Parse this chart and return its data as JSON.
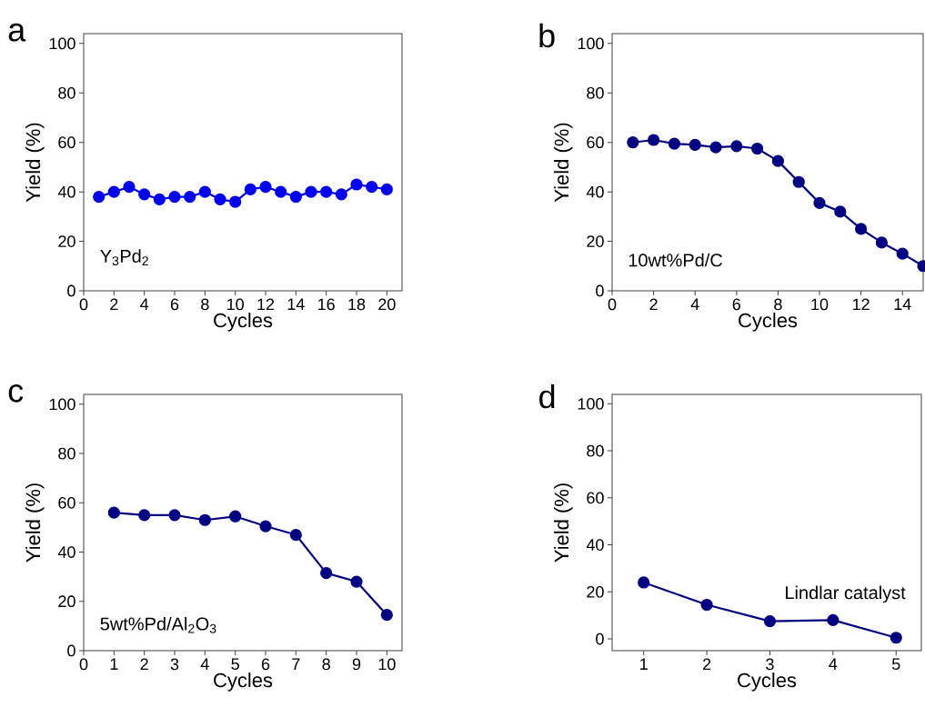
{
  "chart_data": [
    {
      "type": "line",
      "xlabel": "Cycles",
      "ylabel": "Yield (%)",
      "annotations": [
        "a",
        "Y$_{3}$Pd$_{2}$"
      ],
      "marker": "circle",
      "line_style": "solid",
      "xlim": [
        0,
        21
      ],
      "ylim": [
        0,
        104
      ],
      "xticks": [
        0,
        2,
        4,
        6,
        8,
        10,
        12,
        14,
        16,
        18,
        20
      ],
      "yticks": [
        0,
        20,
        40,
        60,
        80,
        100
      ],
      "x": [
        1,
        2,
        3,
        4,
        5,
        6,
        7,
        8,
        9,
        10,
        11,
        12,
        13,
        14,
        15,
        16,
        17,
        18,
        19,
        20
      ],
      "series": [
        {
          "color": "#0000ee",
          "values": [
            38,
            40,
            42,
            39,
            37,
            38,
            38,
            40,
            37,
            36,
            41,
            42,
            40,
            38,
            40,
            40,
            39,
            43,
            42,
            41
          ]
        }
      ]
    },
    {
      "type": "line",
      "xlabel": "Cycles",
      "ylabel": "Yield (%)",
      "annotations": [
        "b",
        "10wt%Pd/C"
      ],
      "marker": "circle",
      "line_style": "solid",
      "xlim": [
        0,
        15
      ],
      "ylim": [
        0,
        104
      ],
      "xticks": [
        0,
        2,
        4,
        6,
        8,
        10,
        12,
        14
      ],
      "yticks": [
        0,
        20,
        40,
        60,
        80,
        100
      ],
      "x": [
        1,
        2,
        3,
        4,
        5,
        6,
        7,
        8,
        9,
        10,
        11,
        12,
        13,
        14,
        15
      ],
      "series": [
        {
          "color": "#000080",
          "values": [
            60,
            61,
            59.5,
            59,
            58,
            58.5,
            57.5,
            52.5,
            44,
            35.5,
            32,
            25,
            19.5,
            15,
            10
          ]
        }
      ]
    },
    {
      "type": "line",
      "xlabel": "Cycles",
      "ylabel": "Yield (%)",
      "annotations": [
        "c",
        "5wt%Pd/Al$_{2}$O$_{3}$"
      ],
      "marker": "circle",
      "line_style": "solid",
      "xlim": [
        0,
        10.5
      ],
      "ylim": [
        0,
        104
      ],
      "xticks": [
        0,
        1,
        2,
        3,
        4,
        5,
        6,
        7,
        8,
        9,
        10
      ],
      "yticks": [
        0,
        20,
        40,
        60,
        80,
        100
      ],
      "x": [
        1,
        2,
        3,
        4,
        5,
        6,
        7,
        8,
        9,
        10
      ],
      "series": [
        {
          "color": "#000080",
          "values": [
            56,
            55,
            55,
            53,
            54.5,
            50.5,
            47,
            31.5,
            28,
            14.5
          ]
        }
      ]
    },
    {
      "type": "line",
      "xlabel": "Cycles",
      "ylabel": "Yield (%)",
      "annotations": [
        "d",
        "Lindlar catalyst"
      ],
      "marker": "circle",
      "line_style": "solid",
      "xlim": [
        0.5,
        5.4
      ],
      "ylim": [
        -5,
        104
      ],
      "xticks": [
        1,
        2,
        3,
        4,
        5
      ],
      "yticks": [
        0,
        20,
        40,
        60,
        80,
        100
      ],
      "x": [
        1,
        2,
        3,
        4,
        5
      ],
      "series": [
        {
          "color": "#000080",
          "values": [
            24,
            14.5,
            7.5,
            8,
            0.5
          ]
        }
      ]
    }
  ]
}
